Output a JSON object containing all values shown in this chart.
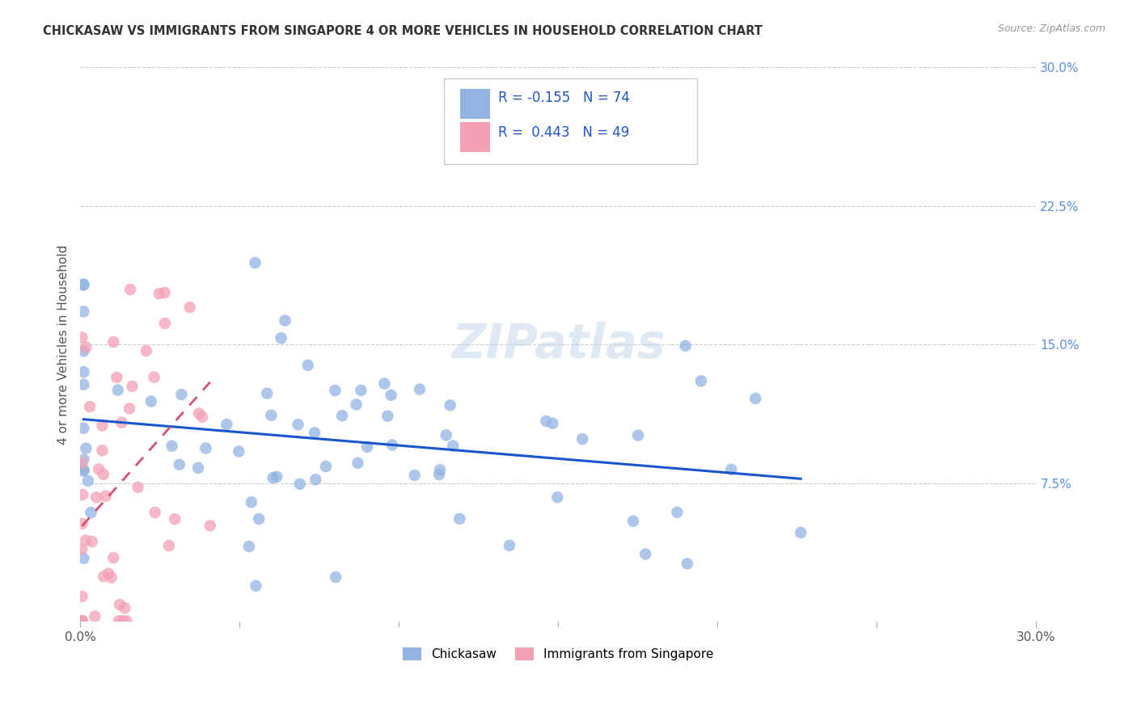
{
  "title": "CHICKASAW VS IMMIGRANTS FROM SINGAPORE 4 OR MORE VEHICLES IN HOUSEHOLD CORRELATION CHART",
  "source": "Source: ZipAtlas.com",
  "ylabel": "4 or more Vehicles in Household",
  "xlim": [
    0.0,
    0.3
  ],
  "ylim": [
    0.0,
    0.3
  ],
  "ytick_vals": [
    0.0,
    0.075,
    0.15,
    0.225,
    0.3
  ],
  "legend_label1": "Chickasaw",
  "legend_label2": "Immigrants from Singapore",
  "R1": -0.155,
  "N1": 74,
  "R2": 0.443,
  "N2": 49,
  "color_blue": "#92b4e3",
  "color_pink": "#f4a0b5",
  "color_trendline_blue": "#1a56cc",
  "color_trendline_pink": "#d94f6e",
  "watermark": "ZIPatlas",
  "bg_color": "#ffffff",
  "grid_color": "#cccccc",
  "right_tick_color": "#5b8fdd",
  "title_color": "#333333",
  "source_color": "#999999"
}
